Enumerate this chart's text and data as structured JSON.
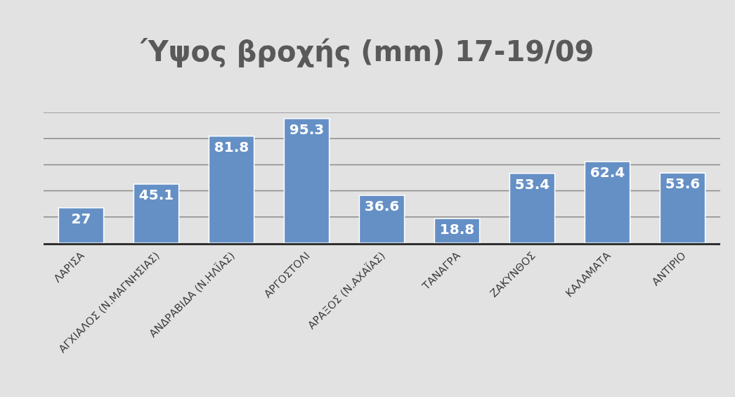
{
  "chart_data": {
    "type": "bar",
    "title": "Ύψος βροχής (mm) 17-19/09",
    "categories": [
      "ΛΑΡΙΣΑ",
      "ΑΓΧΙΑΛΟΣ (Ν.ΜΑΓΝΗΣΙΑΣ)",
      "ΑΝΔΡΑΒΙΔΑ (Ν.ΗΛΪΑΣ)",
      "ΑΡΓΟΣΤΟΛΙ",
      "ΑΡΑΞΟΣ (Ν.ΑΧΑΪΑΣ)",
      "ΤΑΝΑΓΡΑ",
      "ΖΑΚΥΝΘΟΣ",
      "ΚΑΛΑΜΑΤΑ",
      "ΑΝΤΙΡΙΟ"
    ],
    "values": [
      27,
      45.1,
      81.8,
      95.3,
      36.6,
      18.8,
      53.4,
      62.4,
      53.6
    ],
    "color": "#6590c6",
    "data_labels": true,
    "grid": "y",
    "tick_labels": "x",
    "ylim": [
      0,
      100
    ],
    "yticks": [
      {
        "value": 0,
        "label": null
      },
      {
        "value": 20,
        "label": null
      },
      {
        "value": 40,
        "label": null
      },
      {
        "value": 60,
        "label": null
      },
      {
        "value": 80,
        "label": null
      },
      {
        "value": 100,
        "label": null
      }
    ]
  }
}
